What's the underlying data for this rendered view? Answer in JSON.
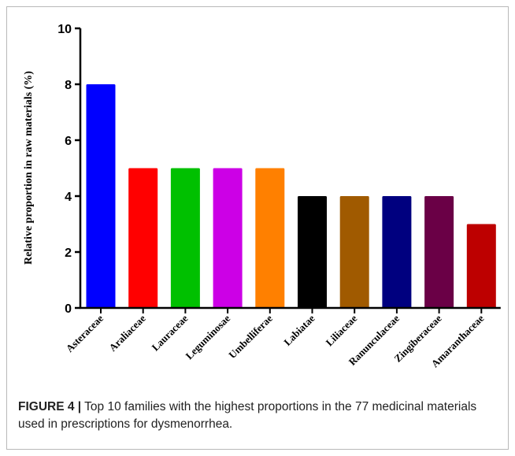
{
  "chart_data": {
    "type": "bar",
    "categories": [
      "Asteraceae",
      "Araliaceae",
      "Lauraceae",
      "Leguminosae",
      "Umbelliferae",
      "Labiatae",
      "Liliaceae",
      "Ranunculaceae",
      "Zingiberaceae",
      "Amaranthaceae"
    ],
    "values": [
      8,
      5,
      5,
      5,
      5,
      4,
      4,
      4,
      4,
      3
    ],
    "colors": [
      "#0000ff",
      "#ff0000",
      "#00c000",
      "#cc00e6",
      "#ff8000",
      "#000000",
      "#a05a00",
      "#00007f",
      "#6a0046",
      "#bd0000"
    ],
    "ylabel": "Relative proportion in raw materials (%)",
    "xlabel": "",
    "ylim": [
      0,
      10
    ],
    "yticks": [
      0,
      2,
      4,
      6,
      8,
      10
    ],
    "grid": false
  },
  "caption": {
    "label": "FIGURE 4 |",
    "text": " Top 10 families with the highest proportions in the 77 medicinal materials used in prescriptions for dysmenorrhea."
  }
}
